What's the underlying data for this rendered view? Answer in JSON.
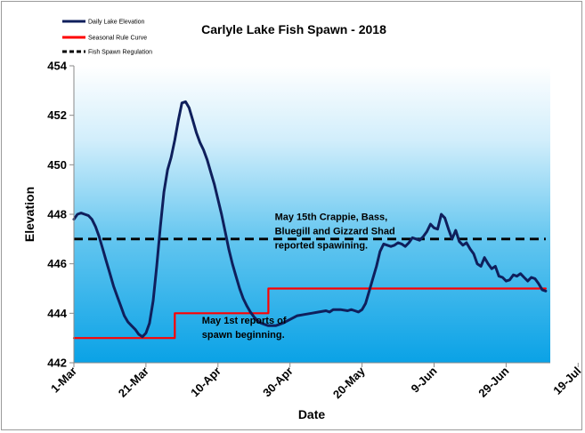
{
  "chart_data": {
    "type": "line",
    "title": "Carlyle Lake Fish Spawn - 2018",
    "xlabel": "Date",
    "ylabel": "Elevation",
    "ylim": [
      442,
      454
    ],
    "yticks": [
      442,
      444,
      446,
      448,
      450,
      452,
      454
    ],
    "xticks": [
      {
        "day": 0,
        "label": "1-Mar"
      },
      {
        "day": 20,
        "label": "21-Mar"
      },
      {
        "day": 40,
        "label": "10-Apr"
      },
      {
        "day": 60,
        "label": "30-Apr"
      },
      {
        "day": 80,
        "label": "20-May"
      },
      {
        "day": 100,
        "label": "9-Jun"
      },
      {
        "day": 120,
        "label": "29-Jun"
      },
      {
        "day": 140,
        "label": "19-Jul"
      }
    ],
    "grid": false,
    "legend_position": "top-left",
    "series": [
      {
        "name": "Daily Lake Elevation",
        "color": "#0f1f5c",
        "points": [
          [
            0,
            447.8
          ],
          [
            1,
            448.0
          ],
          [
            2,
            448.05
          ],
          [
            3,
            448.0
          ],
          [
            4,
            447.95
          ],
          [
            5,
            447.8
          ],
          [
            6,
            447.5
          ],
          [
            7,
            447.1
          ],
          [
            8,
            446.6
          ],
          [
            9,
            446.1
          ],
          [
            10,
            445.6
          ],
          [
            11,
            445.1
          ],
          [
            12,
            444.7
          ],
          [
            13,
            444.3
          ],
          [
            14,
            443.9
          ],
          [
            15,
            443.65
          ],
          [
            16,
            443.5
          ],
          [
            17,
            443.35
          ],
          [
            18,
            443.15
          ],
          [
            19,
            443.05
          ],
          [
            20,
            443.2
          ],
          [
            21,
            443.6
          ],
          [
            22,
            444.5
          ],
          [
            23,
            445.9
          ],
          [
            24,
            447.5
          ],
          [
            25,
            448.9
          ],
          [
            26,
            449.8
          ],
          [
            27,
            450.3
          ],
          [
            28,
            451.0
          ],
          [
            29,
            451.8
          ],
          [
            30,
            452.5
          ],
          [
            31,
            452.55
          ],
          [
            32,
            452.3
          ],
          [
            33,
            451.8
          ],
          [
            34,
            451.3
          ],
          [
            35,
            450.9
          ],
          [
            36,
            450.6
          ],
          [
            37,
            450.2
          ],
          [
            38,
            449.7
          ],
          [
            39,
            449.2
          ],
          [
            40,
            448.6
          ],
          [
            41,
            448.0
          ],
          [
            42,
            447.3
          ],
          [
            43,
            446.6
          ],
          [
            44,
            446.0
          ],
          [
            45,
            445.5
          ],
          [
            46,
            445.0
          ],
          [
            47,
            444.6
          ],
          [
            48,
            444.3
          ],
          [
            49,
            444.05
          ],
          [
            50,
            443.85
          ],
          [
            51,
            443.7
          ],
          [
            52,
            443.6
          ],
          [
            53,
            443.55
          ],
          [
            54,
            443.5
          ],
          [
            55,
            443.5
          ],
          [
            56,
            443.5
          ],
          [
            57,
            443.55
          ],
          [
            58,
            443.6
          ],
          [
            60,
            443.75
          ],
          [
            62,
            443.9
          ],
          [
            64,
            443.95
          ],
          [
            66,
            444.0
          ],
          [
            68,
            444.05
          ],
          [
            70,
            444.1
          ],
          [
            71,
            444.05
          ],
          [
            72,
            444.15
          ],
          [
            74,
            444.15
          ],
          [
            76,
            444.1
          ],
          [
            77,
            444.15
          ],
          [
            78,
            444.1
          ],
          [
            79,
            444.05
          ],
          [
            80,
            444.15
          ],
          [
            81,
            444.4
          ],
          [
            82,
            444.9
          ],
          [
            83,
            445.4
          ],
          [
            84,
            445.9
          ],
          [
            85,
            446.5
          ],
          [
            86,
            446.8
          ],
          [
            87,
            446.75
          ],
          [
            88,
            446.7
          ],
          [
            89,
            446.75
          ],
          [
            90,
            446.85
          ],
          [
            91,
            446.8
          ],
          [
            92,
            446.7
          ],
          [
            93,
            446.85
          ],
          [
            94,
            447.05
          ],
          [
            95,
            447.0
          ],
          [
            96,
            446.95
          ],
          [
            97,
            447.1
          ],
          [
            98,
            447.3
          ],
          [
            99,
            447.6
          ],
          [
            100,
            447.45
          ],
          [
            101,
            447.4
          ],
          [
            102,
            448.0
          ],
          [
            103,
            447.85
          ],
          [
            104,
            447.4
          ],
          [
            105,
            447.0
          ],
          [
            106,
            447.35
          ],
          [
            107,
            446.9
          ],
          [
            108,
            446.75
          ],
          [
            109,
            446.85
          ],
          [
            110,
            446.6
          ],
          [
            111,
            446.4
          ],
          [
            112,
            446.0
          ],
          [
            113,
            445.9
          ],
          [
            114,
            446.25
          ],
          [
            115,
            446.0
          ],
          [
            116,
            445.8
          ],
          [
            117,
            445.9
          ],
          [
            118,
            445.5
          ],
          [
            119,
            445.45
          ],
          [
            120,
            445.3
          ],
          [
            121,
            445.35
          ],
          [
            122,
            445.55
          ],
          [
            123,
            445.5
          ],
          [
            124,
            445.6
          ],
          [
            125,
            445.45
          ],
          [
            126,
            445.3
          ],
          [
            127,
            445.45
          ],
          [
            128,
            445.4
          ],
          [
            129,
            445.2
          ],
          [
            130,
            444.95
          ],
          [
            131,
            444.9
          ]
        ]
      },
      {
        "name": "Seasonal Rule Curve",
        "color": "#ff0000",
        "points": [
          [
            0,
            443.0
          ],
          [
            28,
            443.0
          ],
          [
            28,
            444.0
          ],
          [
            54,
            444.0
          ],
          [
            54,
            445.0
          ],
          [
            131,
            445.0
          ]
        ]
      },
      {
        "name": "Fish Spawn Regulation",
        "color": "#000000",
        "dashed": true,
        "points": [
          [
            0,
            447.0
          ],
          [
            131,
            447.0
          ]
        ]
      }
    ],
    "annotations": [
      {
        "lines": [
          "May 15th Crappie, Bass,",
          "Bluegill and Gizzard Shad",
          "reported spawining."
        ],
        "anchor_day": 80,
        "anchor_value": 446.25
      },
      {
        "lines": [
          "May 1st reports of",
          "spawn beginning."
        ],
        "anchor_day": 62,
        "anchor_value": 443.15
      }
    ]
  }
}
